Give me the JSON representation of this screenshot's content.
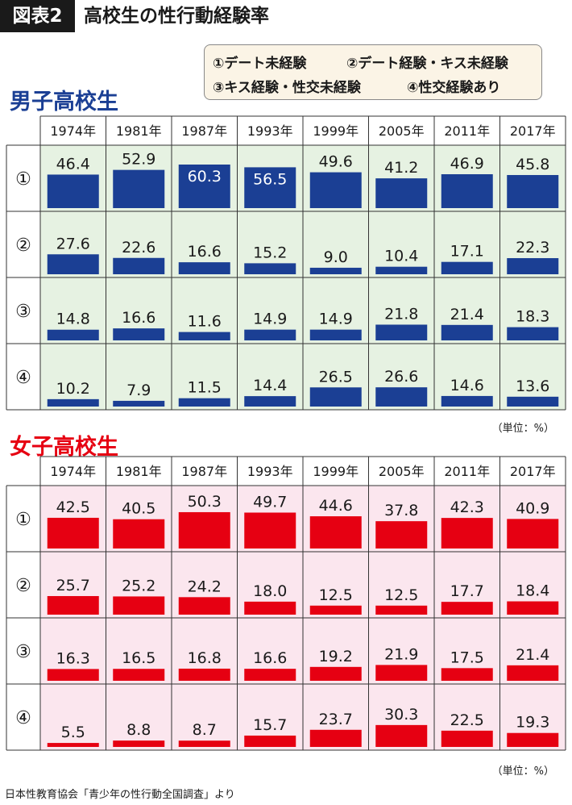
{
  "header": {
    "tag": "図表2",
    "title": "高校生の性行動経験率"
  },
  "legend": [
    "①デート未経験",
    "②デート経験・キス未経験",
    "③キス経験・性交未経験",
    "④性交経験あり"
  ],
  "row_markers": [
    "①",
    "②",
    "③",
    "④"
  ],
  "unit": "（単位：%）",
  "source": "日本性教育協会「青少年の性行動全国調査」より",
  "colors": {
    "male_bar": "#1b3f94",
    "male_bg": "#e6f2e2",
    "male_title": "#1b3f94",
    "female_bar": "#e60012",
    "female_bg": "#fbe6ee",
    "female_title": "#e60012"
  },
  "chart_data": [
    {
      "type": "bar",
      "title": "男子高校生",
      "categories": [
        "1974年",
        "1981年",
        "1987年",
        "1993年",
        "1999年",
        "2005年",
        "2011年",
        "2017年"
      ],
      "series": [
        {
          "name": "①",
          "values": [
            46.4,
            52.9,
            60.3,
            56.5,
            49.6,
            41.2,
            46.9,
            45.8
          ]
        },
        {
          "name": "②",
          "values": [
            27.6,
            22.6,
            16.6,
            15.2,
            9.0,
            10.4,
            17.1,
            22.3
          ]
        },
        {
          "name": "③",
          "values": [
            14.8,
            16.6,
            11.6,
            14.9,
            14.9,
            21.8,
            21.4,
            18.3
          ]
        },
        {
          "name": "④",
          "values": [
            10.2,
            7.9,
            11.5,
            14.4,
            26.5,
            26.6,
            14.6,
            13.6
          ]
        }
      ],
      "labels": [
        [
          "46.4",
          "52.9",
          "60.3",
          "56.5",
          "49.6",
          "41.2",
          "46.9",
          "45.8"
        ],
        [
          "27.6",
          "22.6",
          "16.6",
          "15.2",
          "9.0",
          "10.4",
          "17.1",
          "22.3"
        ],
        [
          "14.8",
          "16.6",
          "11.6",
          "14.9",
          "14.9",
          "21.8",
          "21.4",
          "18.3"
        ],
        [
          "10.2",
          "7.9",
          "11.5",
          "14.4",
          "26.5",
          "26.6",
          "14.6",
          "13.6"
        ]
      ],
      "ylim": [
        0,
        60.3
      ],
      "grid": true
    },
    {
      "type": "bar",
      "title": "女子高校生",
      "categories": [
        "1974年",
        "1981年",
        "1987年",
        "1993年",
        "1999年",
        "2005年",
        "2011年",
        "2017年"
      ],
      "series": [
        {
          "name": "①",
          "values": [
            42.5,
            40.5,
            50.3,
            49.7,
            44.6,
            37.8,
            42.3,
            40.9
          ]
        },
        {
          "name": "②",
          "values": [
            25.7,
            25.2,
            24.2,
            18.0,
            12.5,
            12.5,
            17.7,
            18.4
          ]
        },
        {
          "name": "③",
          "values": [
            16.3,
            16.5,
            16.8,
            16.6,
            19.2,
            21.9,
            17.5,
            21.4
          ]
        },
        {
          "name": "④",
          "values": [
            5.5,
            8.8,
            8.7,
            15.7,
            23.7,
            30.3,
            22.5,
            19.3
          ]
        }
      ],
      "labels": [
        [
          "42.5",
          "40.5",
          "50.3",
          "49.7",
          "44.6",
          "37.8",
          "42.3",
          "40.9"
        ],
        [
          "25.7",
          "25.2",
          "24.2",
          "18.0",
          "12.5",
          "12.5",
          "17.7",
          "18.4"
        ],
        [
          "16.3",
          "16.5",
          "16.8",
          "16.6",
          "19.2",
          "21.9",
          "17.5",
          "21.4"
        ],
        [
          "5.5",
          "8.8",
          "8.7",
          "15.7",
          "23.7",
          "30.3",
          "22.5",
          "19.3"
        ]
      ],
      "ylim": [
        0,
        60.3
      ],
      "grid": true
    }
  ]
}
